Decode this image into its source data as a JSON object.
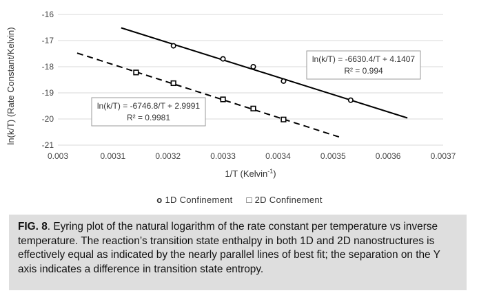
{
  "chart_data": {
    "type": "scatter",
    "xlabel": "1/T (Kelvin",
    "xlabel_sup": "-1",
    "xlabel_suffix": ")",
    "ylabel": "ln(k/T) (Rate Constant/Kelvin)",
    "xlim": [
      0.003,
      0.0037
    ],
    "ylim": [
      -21,
      -16
    ],
    "x_ticks": [
      "0.003",
      "0.0031",
      "0.0032",
      "0.0033",
      "0.0034",
      "0.0035",
      "0.0036",
      "0.0037"
    ],
    "y_ticks": [
      "-16",
      "-17",
      "-18",
      "-19",
      "-20",
      "-21"
    ],
    "grid": true,
    "legend_position": "bottom",
    "series": [
      {
        "name": "1D Confinement",
        "marker": "circle",
        "line_style": "solid",
        "x": [
          0.00321,
          0.0033,
          0.003355,
          0.00341,
          0.003532
        ],
        "y": [
          -17.2,
          -17.7,
          -18.0,
          -18.55,
          -19.28
        ],
        "trend": {
          "slope": -6630.4,
          "intercept": 4.1407,
          "x_range": [
            0.003115,
            0.003635
          ]
        },
        "equation": "ln(k/T) = -6630.4/T + 4.1407",
        "r2": "R² = 0.994"
      },
      {
        "name": "2D Confinement",
        "marker": "square",
        "line_style": "dashed",
        "x": [
          0.003142,
          0.00321,
          0.0033,
          0.003355,
          0.00341
        ],
        "y": [
          -18.22,
          -18.63,
          -19.25,
          -19.6,
          -20.02
        ],
        "trend": {
          "slope": -6746.8,
          "intercept": 2.9991,
          "x_range": [
            0.003035,
            0.003515
          ]
        },
        "equation": "ln(k/T) = -6746.8/T + 2.9991",
        "r2": "R² = 0.9981"
      }
    ]
  },
  "caption": {
    "label": "FIG. 8",
    "text": ". Eyring plot of the natural logarithm of the rate constant per temperature vs inverse temperature. The reaction’s transition state enthalpy in both 1D and 2D nanostructures is effectively equal as indicated by the nearly parallel lines of best fit; the separation on the Y axis indicates a difference in transition state entropy."
  },
  "colors": {
    "line": "#000000",
    "grid": "#d9d9d9",
    "caption_bg": "#dedede"
  }
}
